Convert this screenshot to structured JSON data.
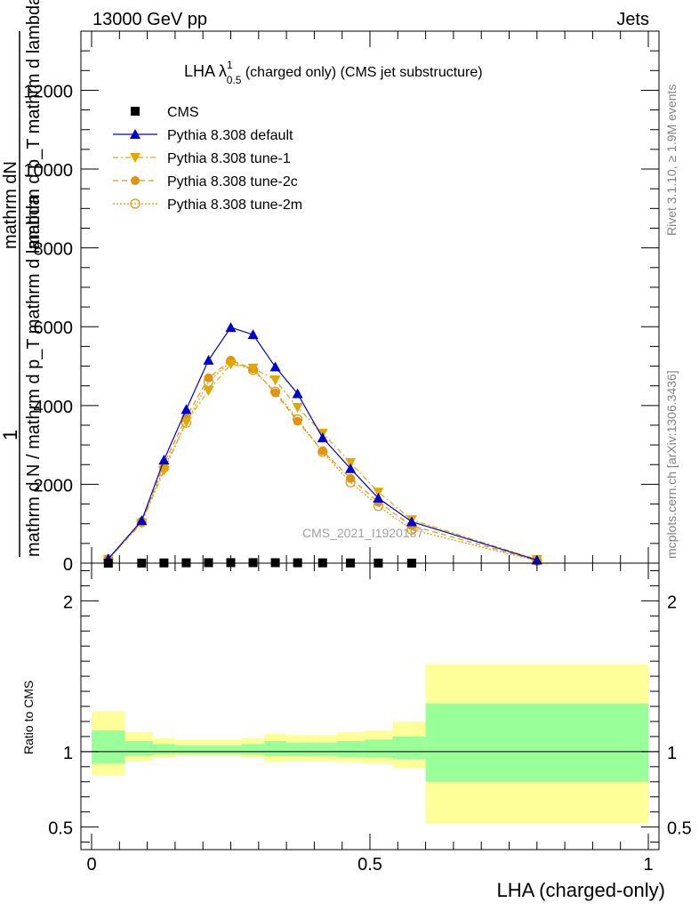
{
  "header": {
    "left_title": "13000 GeV pp",
    "right_title": "Jets"
  },
  "side_labels": {
    "rivet": "Rivet 3.1.10, ≥ 1.9M events",
    "mcplots": "mcplots.cern.ch [arXiv:1306.3436]"
  },
  "chart_data": [
    {
      "type": "line",
      "title_main": "LHA λ",
      "title_sup": "1",
      "title_sub": "0.5",
      "title_rest": " (charged only) (CMS jet substructure)",
      "ylabel_lines": [
        "mathrm dN",
        "mathrm d p_T mathrm d lambda"
      ],
      "ylabel_prefix": "1",
      "ylabel_denominator": "mathrm d N / mathrm d p_T mathrm d lambda",
      "ylabel_mid": "mathrm d",
      "ylabel_sub": "T",
      "watermark": "CMS_2021_I1920187",
      "xlim": [
        0,
        1
      ],
      "ylim": [
        0,
        13500
      ],
      "yticks": [
        0,
        2000,
        4000,
        6000,
        8000,
        10000,
        12000
      ],
      "ytick_labels": [
        "0",
        "2000",
        "4000",
        "6000",
        "8000",
        "10000",
        "12000"
      ],
      "legend": [
        {
          "name": "CMS",
          "style": "black-square"
        },
        {
          "name": "Pythia 8.308 default",
          "style": "blue-triangle-up"
        },
        {
          "name": "Pythia 8.308 tune-1",
          "style": "orange-triangle-down"
        },
        {
          "name": "Pythia 8.308 tune-2c",
          "style": "orange-circle-filled"
        },
        {
          "name": "Pythia 8.308 tune-2m",
          "style": "orange-circle-open"
        }
      ],
      "x": [
        0.03,
        0.09,
        0.13,
        0.17,
        0.21,
        0.25,
        0.29,
        0.33,
        0.37,
        0.415,
        0.465,
        0.515,
        0.575,
        0.8
      ],
      "series": [
        {
          "name": "CMS",
          "color": "#000000",
          "values": [
            0,
            2,
            6,
            9,
            12,
            13,
            13,
            12,
            10,
            8,
            5,
            3,
            1,
            null
          ]
        },
        {
          "name": "Pythia 8.308 default",
          "color": "#0000cc",
          "values": [
            110,
            1080,
            2620,
            3900,
            5150,
            5980,
            5800,
            4980,
            4300,
            3180,
            2400,
            1650,
            1050,
            80
          ]
        },
        {
          "name": "Pythia 8.308 tune-1",
          "color": "#e0a800",
          "values": [
            95,
            1020,
            2350,
            3580,
            4380,
            5050,
            4950,
            4650,
            3950,
            3300,
            2550,
            1800,
            1100,
            90
          ]
        },
        {
          "name": "Pythia 8.308 tune-2c",
          "color": "#e09410",
          "values": [
            100,
            1060,
            2520,
            3700,
            4700,
            5150,
            4930,
            4320,
            3600,
            2850,
            2150,
            1550,
            950,
            65
          ]
        },
        {
          "name": "Pythia 8.308 tune-2m",
          "color": "#e09410",
          "values": [
            100,
            1040,
            2420,
            3560,
            4600,
            5120,
            4900,
            4350,
            3650,
            2820,
            2050,
            1450,
            850,
            60
          ]
        }
      ]
    },
    {
      "type": "area",
      "ylabel": "Ratio to CMS",
      "xlabel": "LHA (charged-only)",
      "xlim": [
        0,
        1
      ],
      "ylim": [
        0.35,
        2.25
      ],
      "xticks": [
        0,
        0.5,
        1
      ],
      "xtick_labels": [
        "0",
        "0.5",
        "1"
      ],
      "yticks": [
        0.5,
        1,
        2
      ],
      "ytick_labels": [
        "0.5",
        "1",
        "2"
      ],
      "band_colors": {
        "outer": "#ffff99",
        "inner": "#99ff99"
      },
      "bins": [
        {
          "lo": 0.0,
          "hi": 0.06,
          "outer": [
            0.84,
            1.27
          ],
          "inner": [
            0.92,
            1.14
          ]
        },
        {
          "lo": 0.06,
          "hi": 0.11,
          "outer": [
            0.94,
            1.13
          ],
          "inner": [
            0.97,
            1.07
          ]
        },
        {
          "lo": 0.11,
          "hi": 0.15,
          "outer": [
            0.96,
            1.09
          ],
          "inner": [
            0.98,
            1.05
          ]
        },
        {
          "lo": 0.15,
          "hi": 0.19,
          "outer": [
            0.97,
            1.08
          ],
          "inner": [
            0.985,
            1.04
          ]
        },
        {
          "lo": 0.19,
          "hi": 0.23,
          "outer": [
            0.97,
            1.08
          ],
          "inner": [
            0.985,
            1.04
          ]
        },
        {
          "lo": 0.23,
          "hi": 0.27,
          "outer": [
            0.97,
            1.08
          ],
          "inner": [
            0.985,
            1.04
          ]
        },
        {
          "lo": 0.27,
          "hi": 0.31,
          "outer": [
            0.96,
            1.09
          ],
          "inner": [
            0.98,
            1.05
          ]
        },
        {
          "lo": 0.31,
          "hi": 0.35,
          "outer": [
            0.93,
            1.12
          ],
          "inner": [
            0.97,
            1.07
          ]
        },
        {
          "lo": 0.35,
          "hi": 0.39,
          "outer": [
            0.94,
            1.11
          ],
          "inner": [
            0.97,
            1.06
          ]
        },
        {
          "lo": 0.39,
          "hi": 0.44,
          "outer": [
            0.94,
            1.11
          ],
          "inner": [
            0.97,
            1.06
          ]
        },
        {
          "lo": 0.44,
          "hi": 0.49,
          "outer": [
            0.93,
            1.13
          ],
          "inner": [
            0.965,
            1.07
          ]
        },
        {
          "lo": 0.49,
          "hi": 0.54,
          "outer": [
            0.92,
            1.14
          ],
          "inner": [
            0.96,
            1.08
          ]
        },
        {
          "lo": 0.54,
          "hi": 0.6,
          "outer": [
            0.89,
            1.2
          ],
          "inner": [
            0.95,
            1.1
          ]
        },
        {
          "lo": 0.6,
          "hi": 1.0,
          "outer": [
            0.52,
            1.58
          ],
          "inner": [
            0.8,
            1.32
          ]
        }
      ]
    }
  ]
}
